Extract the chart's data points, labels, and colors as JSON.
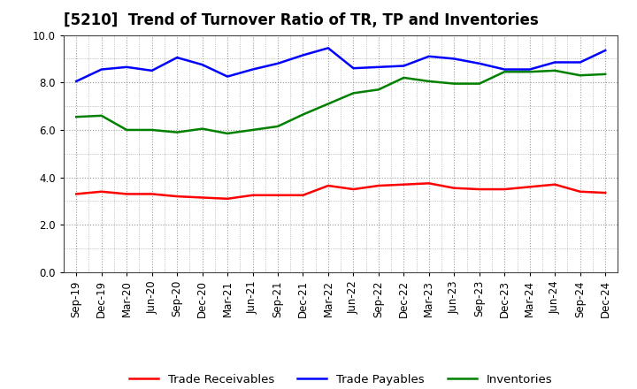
{
  "title": "[5210]  Trend of Turnover Ratio of TR, TP and Inventories",
  "xlabels": [
    "Sep-19",
    "Dec-19",
    "Mar-20",
    "Jun-20",
    "Sep-20",
    "Dec-20",
    "Mar-21",
    "Jun-21",
    "Sep-21",
    "Dec-21",
    "Mar-22",
    "Jun-22",
    "Sep-22",
    "Dec-22",
    "Mar-23",
    "Jun-23",
    "Sep-23",
    "Dec-23",
    "Mar-24",
    "Jun-24",
    "Sep-24",
    "Dec-24"
  ],
  "trade_receivables": [
    3.3,
    3.4,
    3.3,
    3.3,
    3.2,
    3.15,
    3.1,
    3.25,
    3.25,
    3.25,
    3.65,
    3.5,
    3.65,
    3.7,
    3.75,
    3.55,
    3.5,
    3.5,
    3.6,
    3.7,
    3.4,
    3.35
  ],
  "trade_payables": [
    8.05,
    8.55,
    8.65,
    8.5,
    9.05,
    8.75,
    8.25,
    8.55,
    8.8,
    9.15,
    9.45,
    8.6,
    8.65,
    8.7,
    9.1,
    9.0,
    8.8,
    8.55,
    8.55,
    8.85,
    8.85,
    9.35
  ],
  "inventories": [
    6.55,
    6.6,
    6.0,
    6.0,
    5.9,
    6.05,
    5.85,
    6.0,
    6.15,
    6.65,
    7.1,
    7.55,
    7.7,
    8.2,
    8.05,
    7.95,
    7.95,
    8.45,
    8.45,
    8.5,
    8.3,
    8.35
  ],
  "tr_color": "#ff0000",
  "tp_color": "#0000ff",
  "inv_color": "#008000",
  "ylim": [
    0.0,
    10.0
  ],
  "yticks": [
    0.0,
    2.0,
    4.0,
    6.0,
    8.0,
    10.0
  ],
  "background_color": "#ffffff",
  "grid_color": "#999999",
  "title_fontsize": 12,
  "legend_fontsize": 9.5,
  "tick_fontsize": 8.5,
  "line_width": 1.8
}
